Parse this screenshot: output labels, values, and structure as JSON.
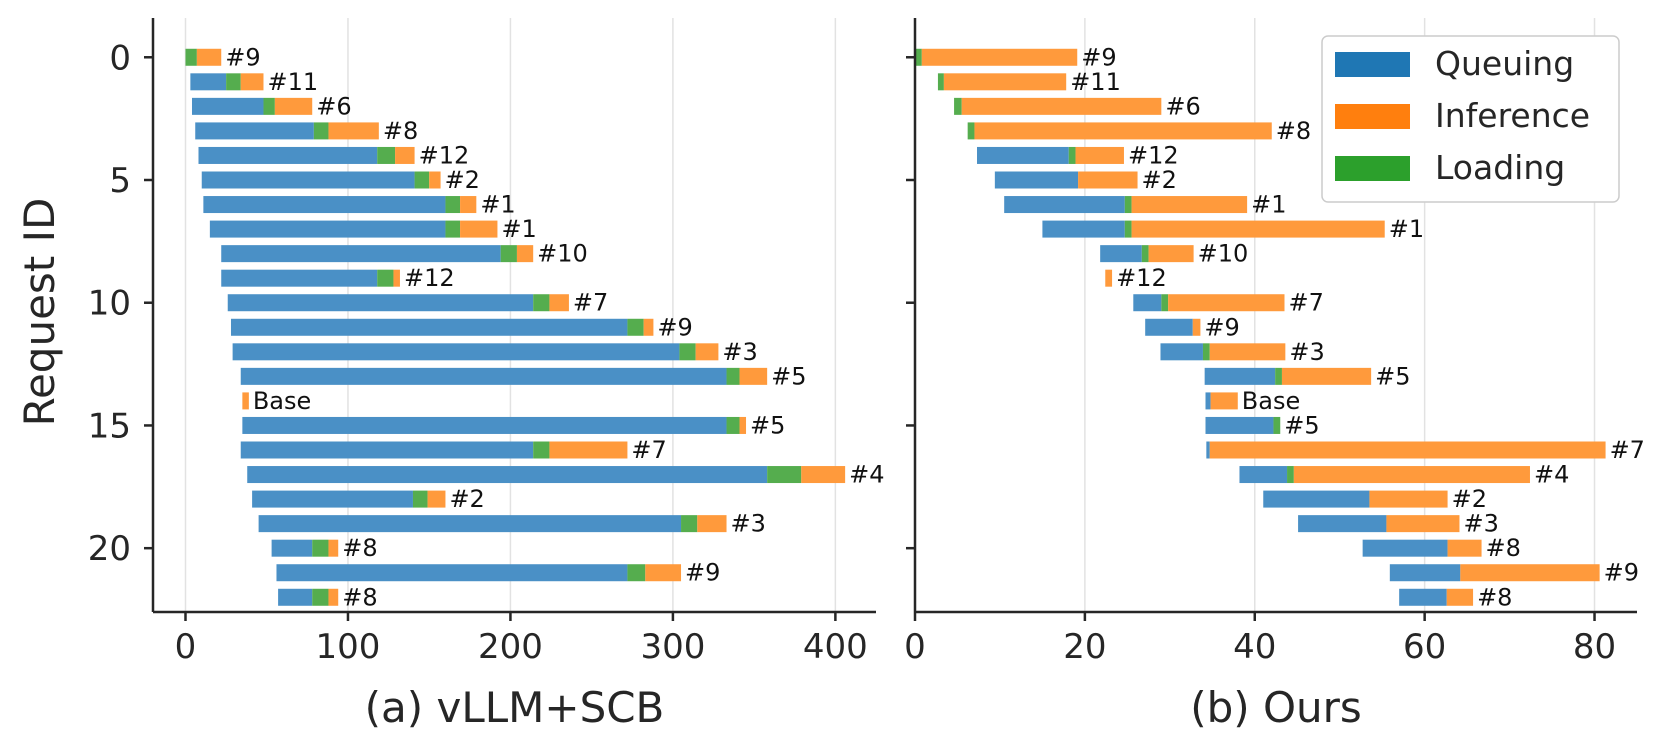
{
  "colors": {
    "queuing": "#4a90c6",
    "inference": "#ff9a3c",
    "loading": "#55ad4e",
    "legend_queuing": "#1f77b4",
    "legend_inference": "#ff7f0e",
    "legend_loading": "#2ca02c"
  },
  "shared_y_axis": {
    "title": "Request ID",
    "ticks": [
      0,
      5,
      10,
      15,
      20
    ]
  },
  "legend": {
    "items": [
      {
        "key": "queuing",
        "label": "Queuing"
      },
      {
        "key": "inference",
        "label": "Inference"
      },
      {
        "key": "loading",
        "label": "Loading"
      }
    ]
  },
  "chart_data": [
    {
      "type": "bar",
      "orientation": "horizontal-stacked",
      "title": "(a) vLLM+SCB",
      "xlabel": "(a) vLLM+SCB",
      "ylabel": "Request ID",
      "xlim": [
        -20,
        425
      ],
      "xticks": [
        0,
        100,
        200,
        300,
        400
      ],
      "ylim": [
        22.6,
        -1.6
      ],
      "segment_order": [
        "queuing",
        "loading",
        "inference"
      ],
      "requests": [
        {
          "id": 0,
          "start": 0,
          "queuing": 0,
          "loading": 7,
          "inference": 15,
          "label": "#9"
        },
        {
          "id": 1,
          "start": 3,
          "queuing": 22,
          "loading": 9,
          "inference": 14,
          "label": "#11"
        },
        {
          "id": 2,
          "start": 4,
          "queuing": 44,
          "loading": 7,
          "inference": 23,
          "label": "#6"
        },
        {
          "id": 3,
          "start": 6,
          "queuing": 73,
          "loading": 9,
          "inference": 31,
          "label": "#8"
        },
        {
          "id": 4,
          "start": 8,
          "queuing": 110,
          "loading": 11,
          "inference": 12,
          "label": "#12"
        },
        {
          "id": 5,
          "start": 10,
          "queuing": 131,
          "loading": 9,
          "inference": 7,
          "label": "#2"
        },
        {
          "id": 6,
          "start": 11,
          "queuing": 149,
          "loading": 9,
          "inference": 10,
          "label": "#1"
        },
        {
          "id": 7,
          "start": 15,
          "queuing": 145,
          "loading": 9,
          "inference": 23,
          "label": "#1"
        },
        {
          "id": 8,
          "start": 22,
          "queuing": 172,
          "loading": 10,
          "inference": 10,
          "label": "#10"
        },
        {
          "id": 9,
          "start": 22,
          "queuing": 96,
          "loading": 10,
          "inference": 4,
          "label": "#12"
        },
        {
          "id": 10,
          "start": 26,
          "queuing": 188,
          "loading": 10,
          "inference": 12,
          "label": "#7"
        },
        {
          "id": 11,
          "start": 28,
          "queuing": 244,
          "loading": 10,
          "inference": 6,
          "label": "#9"
        },
        {
          "id": 12,
          "start": 29,
          "queuing": 275,
          "loading": 10,
          "inference": 14,
          "label": "#3"
        },
        {
          "id": 13,
          "start": 34,
          "queuing": 299,
          "loading": 8,
          "inference": 17,
          "label": "#5"
        },
        {
          "id": 14,
          "start": 35,
          "queuing": 0,
          "loading": 0,
          "inference": 4,
          "label": "Base"
        },
        {
          "id": 15,
          "start": 35,
          "queuing": 298,
          "loading": 8,
          "inference": 4,
          "label": "#5"
        },
        {
          "id": 16,
          "start": 34,
          "queuing": 180,
          "loading": 10,
          "inference": 48,
          "label": "#7"
        },
        {
          "id": 17,
          "start": 38,
          "queuing": 320,
          "loading": 21,
          "inference": 27,
          "label": "#4"
        },
        {
          "id": 18,
          "start": 41,
          "queuing": 99,
          "loading": 9,
          "inference": 11,
          "label": "#2"
        },
        {
          "id": 19,
          "start": 45,
          "queuing": 260,
          "loading": 10,
          "inference": 18,
          "label": "#3"
        },
        {
          "id": 20,
          "start": 53,
          "queuing": 25,
          "loading": 10,
          "inference": 6,
          "label": "#8"
        },
        {
          "id": 21,
          "start": 56,
          "queuing": 216,
          "loading": 11,
          "inference": 22,
          "label": "#9"
        },
        {
          "id": 22,
          "start": 57,
          "queuing": 21,
          "loading": 10,
          "inference": 6,
          "label": "#8"
        }
      ]
    },
    {
      "type": "bar",
      "orientation": "horizontal-stacked",
      "title": "(b) Ours",
      "xlabel": "(b) Ours",
      "ylabel": "Request ID",
      "xlim": [
        0,
        85
      ],
      "xticks": [
        0,
        20,
        40,
        60,
        80
      ],
      "ylim": [
        22.6,
        -1.6
      ],
      "segment_order": [
        "queuing",
        "loading",
        "inference"
      ],
      "requests": [
        {
          "id": 0,
          "start": 0,
          "queuing": 0,
          "loading": 0.8,
          "inference": 18.3,
          "label": "#9"
        },
        {
          "id": 1,
          "start": 2.7,
          "queuing": 0,
          "loading": 0.7,
          "inference": 14.4,
          "label": "#11"
        },
        {
          "id": 2,
          "start": 4.6,
          "queuing": 0,
          "loading": 0.9,
          "inference": 23.5,
          "label": "#6"
        },
        {
          "id": 3,
          "start": 6.2,
          "queuing": 0,
          "loading": 0.8,
          "inference": 35.0,
          "label": "#8"
        },
        {
          "id": 4,
          "start": 7.3,
          "queuing": 10.8,
          "loading": 0.8,
          "inference": 5.7,
          "label": "#12"
        },
        {
          "id": 5,
          "start": 9.4,
          "queuing": 9.8,
          "loading": 0,
          "inference": 7.0,
          "label": "#2"
        },
        {
          "id": 6,
          "start": 10.5,
          "queuing": 14.2,
          "loading": 0.8,
          "inference": 13.6,
          "label": "#1"
        },
        {
          "id": 7,
          "start": 15.0,
          "queuing": 9.7,
          "loading": 0.8,
          "inference": 29.8,
          "label": "#1"
        },
        {
          "id": 8,
          "start": 21.8,
          "queuing": 4.9,
          "loading": 0.8,
          "inference": 5.3,
          "label": "#10"
        },
        {
          "id": 9,
          "start": 22.4,
          "queuing": 0,
          "loading": 0,
          "inference": 0.8,
          "label": "#12"
        },
        {
          "id": 10,
          "start": 25.7,
          "queuing": 3.3,
          "loading": 0.8,
          "inference": 13.7,
          "label": "#7"
        },
        {
          "id": 11,
          "start": 27.1,
          "queuing": 5.6,
          "loading": 0,
          "inference": 0.9,
          "label": "#9"
        },
        {
          "id": 12,
          "start": 28.9,
          "queuing": 5.0,
          "loading": 0.8,
          "inference": 8.9,
          "label": "#3"
        },
        {
          "id": 13,
          "start": 34.1,
          "queuing": 8.3,
          "loading": 0.8,
          "inference": 10.5,
          "label": "#5"
        },
        {
          "id": 14,
          "start": 34.2,
          "queuing": 0.6,
          "loading": 0,
          "inference": 3.2,
          "label": "Base"
        },
        {
          "id": 15,
          "start": 34.2,
          "queuing": 8.0,
          "loading": 0.8,
          "inference": 0,
          "label": "#5"
        },
        {
          "id": 16,
          "start": 34.3,
          "queuing": 0.4,
          "loading": 0,
          "inference": 46.6,
          "label": "#7"
        },
        {
          "id": 17,
          "start": 38.2,
          "queuing": 5.6,
          "loading": 0.8,
          "inference": 27.8,
          "label": "#4"
        },
        {
          "id": 18,
          "start": 41.0,
          "queuing": 12.5,
          "loading": 0,
          "inference": 9.2,
          "label": "#2"
        },
        {
          "id": 19,
          "start": 45.1,
          "queuing": 10.4,
          "loading": 0,
          "inference": 8.6,
          "label": "#3"
        },
        {
          "id": 20,
          "start": 52.7,
          "queuing": 10.0,
          "loading": 0,
          "inference": 4.0,
          "label": "#8"
        },
        {
          "id": 21,
          "start": 55.9,
          "queuing": 8.3,
          "loading": 0,
          "inference": 16.4,
          "label": "#9"
        },
        {
          "id": 22,
          "start": 57.0,
          "queuing": 5.6,
          "loading": 0,
          "inference": 3.1,
          "label": "#8"
        }
      ]
    }
  ]
}
